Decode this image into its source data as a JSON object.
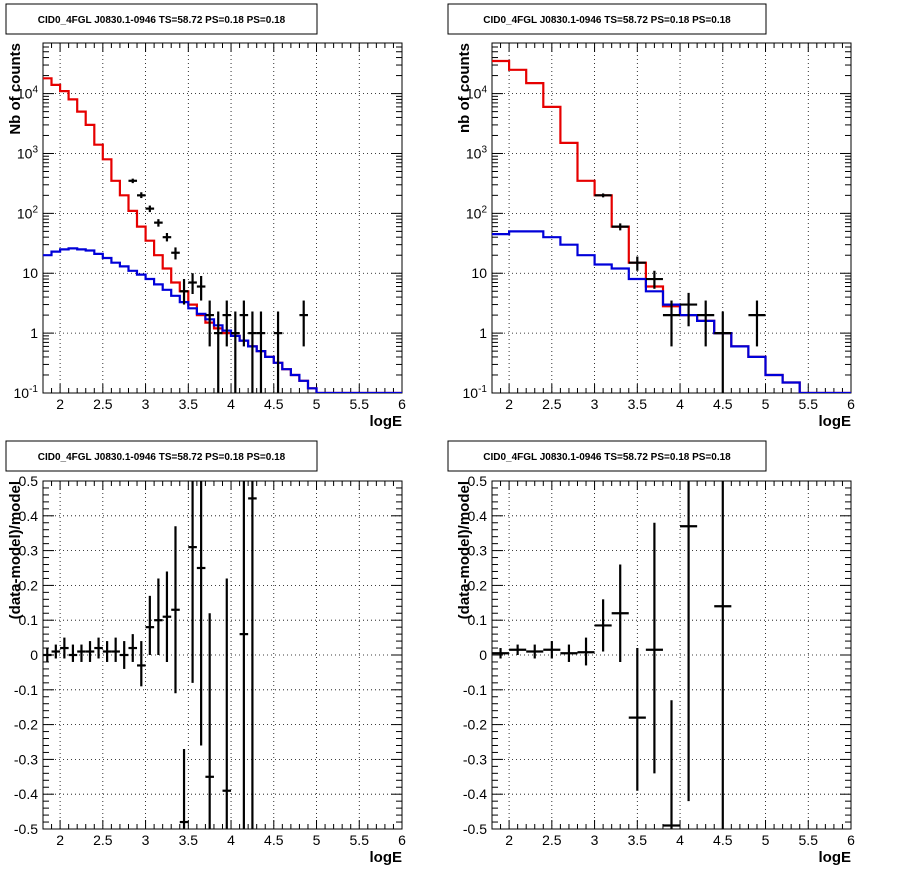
{
  "chart_data": [
    {
      "type": "line",
      "title": "CID0_4FGL J0830.1-0946 TS=58.72 PS=0.18 PS=0.18",
      "xlabel": "logE",
      "ylabel": "Nb of counts",
      "xscale": "linear",
      "yscale": "log",
      "xlim": [
        1.8,
        6
      ],
      "ylim": [
        0.1,
        70000
      ],
      "grid": true,
      "xtick_labels": [
        "2",
        "2.5",
        "3",
        "3.5",
        "4",
        "4.5",
        "5",
        "5.5",
        "6"
      ],
      "ytick_labels": [
        "10^-1",
        "1",
        "10",
        "10^2",
        "10^3",
        "10^4"
      ],
      "series": [
        {
          "kind": "step",
          "color": "#e60000",
          "x_edges": [
            1.8,
            1.9,
            2.0,
            2.1,
            2.2,
            2.3,
            2.4,
            2.5,
            2.6,
            2.7,
            2.8,
            2.9,
            3.0,
            3.1,
            3.2,
            3.3,
            3.4,
            3.5,
            3.6,
            3.7,
            3.8,
            3.9,
            4.0,
            4.1,
            4.2,
            4.3,
            4.4,
            4.5,
            4.6,
            4.7,
            4.8,
            4.9,
            5.0,
            5.1,
            5.2,
            5.3,
            5.4,
            5.5,
            5.6,
            5.7,
            5.8,
            5.9,
            6.0
          ],
          "values": [
            18000,
            14000,
            11000,
            8000,
            5000,
            3000,
            1400,
            800,
            350,
            200,
            110,
            60,
            35,
            20,
            12,
            7,
            5,
            3,
            2,
            1.5,
            1.2,
            1.0,
            0.9,
            0.75,
            0.6,
            0.5,
            0.4,
            0.32,
            0.25,
            0.2,
            0.16,
            0.12,
            0.1,
            0.1,
            0.1,
            0.1,
            0.1,
            0.1,
            0.1,
            0.1,
            0.1,
            0.1
          ]
        },
        {
          "kind": "step",
          "color": "#0000d9",
          "x_edges": [
            1.8,
            1.9,
            2.0,
            2.1,
            2.2,
            2.3,
            2.4,
            2.5,
            2.6,
            2.7,
            2.8,
            2.9,
            3.0,
            3.1,
            3.2,
            3.3,
            3.4,
            3.5,
            3.6,
            3.7,
            3.8,
            3.9,
            4.0,
            4.1,
            4.2,
            4.3,
            4.4,
            4.5,
            4.6,
            4.7,
            4.8,
            4.9,
            5.0,
            5.1,
            5.2,
            5.3,
            5.4,
            5.5,
            5.6,
            5.7,
            5.8,
            5.9,
            6.0
          ],
          "values": [
            20,
            23,
            25,
            26,
            25,
            24,
            21,
            18,
            15,
            13,
            11,
            9.5,
            8,
            6.5,
            5.3,
            4.2,
            3.3,
            2.6,
            2.1,
            1.7,
            1.35,
            1.1,
            0.9,
            0.75,
            0.6,
            0.5,
            0.4,
            0.32,
            0.25,
            0.2,
            0.16,
            0.12,
            0.1,
            0.1,
            0.1,
            0.1,
            0.1,
            0.1,
            0.1,
            0.1,
            0.1,
            0.1
          ]
        },
        {
          "kind": "errorbar",
          "color": "#000000",
          "points": [
            {
              "x": 2.85,
              "y": 350,
              "xerr": 0.05,
              "ylo": 320,
              "yhi": 380
            },
            {
              "x": 2.95,
              "y": 200,
              "xerr": 0.05,
              "ylo": 180,
              "yhi": 225
            },
            {
              "x": 3.05,
              "y": 120,
              "xerr": 0.05,
              "ylo": 105,
              "yhi": 135
            },
            {
              "x": 3.15,
              "y": 70,
              "xerr": 0.05,
              "ylo": 60,
              "yhi": 80
            },
            {
              "x": 3.25,
              "y": 40,
              "xerr": 0.05,
              "ylo": 34,
              "yhi": 47
            },
            {
              "x": 3.35,
              "y": 22,
              "xerr": 0.05,
              "ylo": 17,
              "yhi": 27
            },
            {
              "x": 3.45,
              "y": 5,
              "xerr": 0.05,
              "ylo": 3,
              "yhi": 8
            },
            {
              "x": 3.55,
              "y": 7,
              "xerr": 0.05,
              "ylo": 4.5,
              "yhi": 10
            },
            {
              "x": 3.65,
              "y": 6,
              "xerr": 0.05,
              "ylo": 3.5,
              "yhi": 9
            },
            {
              "x": 3.75,
              "y": 2,
              "xerr": 0.05,
              "ylo": 0.6,
              "yhi": 3.5
            },
            {
              "x": 3.85,
              "y": 1,
              "xerr": 0.05,
              "ylo": 0.1,
              "yhi": 2.3
            },
            {
              "x": 3.95,
              "y": 2,
              "xerr": 0.05,
              "ylo": 0.6,
              "yhi": 3.5
            },
            {
              "x": 4.05,
              "y": 1,
              "xerr": 0.05,
              "ylo": 0.1,
              "yhi": 2.3
            },
            {
              "x": 4.15,
              "y": 2,
              "xerr": 0.05,
              "ylo": 0.6,
              "yhi": 3.5
            },
            {
              "x": 4.25,
              "y": 1,
              "xerr": 0.05,
              "ylo": 0.1,
              "yhi": 2.3
            },
            {
              "x": 4.35,
              "y": 1,
              "xerr": 0.05,
              "ylo": 0.1,
              "yhi": 2.3
            },
            {
              "x": 4.55,
              "y": 1,
              "xerr": 0.05,
              "ylo": 0.1,
              "yhi": 2.3
            },
            {
              "x": 4.85,
              "y": 2,
              "xerr": 0.05,
              "ylo": 0.6,
              "yhi": 3.5
            }
          ]
        }
      ]
    },
    {
      "type": "line",
      "title": "CID0_4FGL J0830.1-0946 TS=58.72 PS=0.18 PS=0.18",
      "xlabel": "logE",
      "ylabel": "nb of counts",
      "xscale": "linear",
      "yscale": "log",
      "xlim": [
        1.8,
        6
      ],
      "ylim": [
        0.1,
        70000
      ],
      "grid": true,
      "xtick_labels": [
        "2",
        "2.5",
        "3",
        "3.5",
        "4",
        "4.5",
        "5",
        "5.5",
        "6"
      ],
      "ytick_labels": [
        "10^-1",
        "1",
        "10",
        "10^2",
        "10^3",
        "10^4"
      ],
      "series": [
        {
          "kind": "step",
          "color": "#e60000",
          "x_edges": [
            1.8,
            2.0,
            2.2,
            2.4,
            2.6,
            2.8,
            3.0,
            3.2,
            3.4,
            3.6,
            3.8,
            4.0,
            4.2,
            4.4,
            4.6,
            4.8,
            5.0,
            5.2,
            5.4,
            5.6,
            5.8,
            6.0
          ],
          "values": [
            35000,
            25000,
            15000,
            6000,
            1500,
            350,
            200,
            60,
            15,
            6,
            2.8,
            2,
            1.6,
            1,
            0.6,
            0.4,
            0.2,
            0.15,
            0.1,
            0.1,
            0.1
          ]
        },
        {
          "kind": "step",
          "color": "#0000d9",
          "x_edges": [
            1.8,
            2.0,
            2.2,
            2.4,
            2.6,
            2.8,
            3.0,
            3.2,
            3.4,
            3.6,
            3.8,
            4.0,
            4.2,
            4.4,
            4.6,
            4.8,
            5.0,
            5.2,
            5.4,
            5.6,
            5.8,
            6.0
          ],
          "values": [
            45,
            50,
            50,
            40,
            30,
            20,
            14,
            12,
            8,
            5,
            3,
            2,
            1.6,
            1,
            0.6,
            0.4,
            0.2,
            0.15,
            0.1,
            0.1,
            0.1
          ]
        },
        {
          "kind": "errorbar",
          "color": "#000000",
          "points": [
            {
              "x": 3.1,
              "y": 200,
              "xerr": 0.1,
              "ylo": 185,
              "yhi": 215
            },
            {
              "x": 3.3,
              "y": 60,
              "xerr": 0.1,
              "ylo": 52,
              "yhi": 68
            },
            {
              "x": 3.5,
              "y": 15,
              "xerr": 0.1,
              "ylo": 11,
              "yhi": 19
            },
            {
              "x": 3.7,
              "y": 8,
              "xerr": 0.1,
              "ylo": 5.5,
              "yhi": 11
            },
            {
              "x": 3.9,
              "y": 2,
              "xerr": 0.1,
              "ylo": 0.6,
              "yhi": 3.5
            },
            {
              "x": 4.1,
              "y": 3,
              "xerr": 0.1,
              "ylo": 1.3,
              "yhi": 4.7
            },
            {
              "x": 4.3,
              "y": 2,
              "xerr": 0.1,
              "ylo": 0.6,
              "yhi": 3.5
            },
            {
              "x": 4.5,
              "y": 1,
              "xerr": 0.1,
              "ylo": 0.1,
              "yhi": 2.3
            },
            {
              "x": 4.9,
              "y": 2,
              "xerr": 0.1,
              "ylo": 0.6,
              "yhi": 3.5
            }
          ]
        }
      ]
    },
    {
      "type": "scatter",
      "title": "CID0_4FGL J0830.1-0946 TS=58.72 PS=0.18 PS=0.18",
      "xlabel": "logE",
      "ylabel": "(data-model)/model",
      "xscale": "linear",
      "yscale": "linear",
      "xlim": [
        1.8,
        6
      ],
      "ylim": [
        -0.5,
        0.5
      ],
      "grid": true,
      "xtick_labels": [
        "2",
        "2.5",
        "3",
        "3.5",
        "4",
        "4.5",
        "5",
        "5.5",
        "6"
      ],
      "ytick_labels": [
        "-0.5",
        "-0.4",
        "-0.3",
        "-0.2",
        "-0.1",
        "0",
        "0.1",
        "0.2",
        "0.3",
        "0.4",
        "0.5"
      ],
      "series": [
        {
          "kind": "errorbar",
          "color": "#000000",
          "points": [
            {
              "x": 1.85,
              "y": 0.0,
              "xerr": 0.05,
              "ylo": -0.02,
              "yhi": 0.02
            },
            {
              "x": 1.95,
              "y": 0.01,
              "xerr": 0.05,
              "ylo": -0.01,
              "yhi": 0.03
            },
            {
              "x": 2.05,
              "y": 0.02,
              "xerr": 0.05,
              "ylo": -0.01,
              "yhi": 0.05
            },
            {
              "x": 2.15,
              "y": 0.0,
              "xerr": 0.05,
              "ylo": -0.02,
              "yhi": 0.03
            },
            {
              "x": 2.25,
              "y": 0.01,
              "xerr": 0.05,
              "ylo": -0.02,
              "yhi": 0.03
            },
            {
              "x": 2.35,
              "y": 0.01,
              "xerr": 0.05,
              "ylo": -0.02,
              "yhi": 0.04
            },
            {
              "x": 2.45,
              "y": 0.02,
              "xerr": 0.05,
              "ylo": -0.01,
              "yhi": 0.05
            },
            {
              "x": 2.55,
              "y": 0.01,
              "xerr": 0.05,
              "ylo": -0.02,
              "yhi": 0.04
            },
            {
              "x": 2.65,
              "y": 0.01,
              "xerr": 0.05,
              "ylo": -0.02,
              "yhi": 0.05
            },
            {
              "x": 2.75,
              "y": 0.0,
              "xerr": 0.05,
              "ylo": -0.04,
              "yhi": 0.04
            },
            {
              "x": 2.85,
              "y": 0.02,
              "xerr": 0.05,
              "ylo": -0.02,
              "yhi": 0.06
            },
            {
              "x": 2.95,
              "y": -0.03,
              "xerr": 0.05,
              "ylo": -0.09,
              "yhi": 0.04
            },
            {
              "x": 3.05,
              "y": 0.08,
              "xerr": 0.05,
              "ylo": 0.0,
              "yhi": 0.17
            },
            {
              "x": 3.15,
              "y": 0.1,
              "xerr": 0.05,
              "ylo": 0.0,
              "yhi": 0.22
            },
            {
              "x": 3.25,
              "y": 0.11,
              "xerr": 0.05,
              "ylo": -0.02,
              "yhi": 0.24
            },
            {
              "x": 3.35,
              "y": 0.13,
              "xerr": 0.05,
              "ylo": -0.11,
              "yhi": 0.37
            },
            {
              "x": 3.45,
              "y": -0.48,
              "xerr": 0.05,
              "ylo": -0.5,
              "yhi": -0.27
            },
            {
              "x": 3.55,
              "y": 0.31,
              "xerr": 0.05,
              "ylo": -0.08,
              "yhi": 0.5
            },
            {
              "x": 3.65,
              "y": 0.25,
              "xerr": 0.05,
              "ylo": -0.26,
              "yhi": 0.5
            },
            {
              "x": 3.75,
              "y": -0.35,
              "xerr": 0.05,
              "ylo": -0.5,
              "yhi": 0.12
            },
            {
              "x": 3.95,
              "y": -0.39,
              "xerr": 0.05,
              "ylo": -0.5,
              "yhi": 0.22
            },
            {
              "x": 4.15,
              "y": 0.06,
              "xerr": 0.05,
              "ylo": -0.5,
              "yhi": 0.5
            },
            {
              "x": 4.25,
              "y": 0.45,
              "xerr": 0.05,
              "ylo": -0.5,
              "yhi": 0.5
            }
          ]
        }
      ]
    },
    {
      "type": "scatter",
      "title": "CID0_4FGL J0830.1-0946 TS=58.72 PS=0.18 PS=0.18",
      "xlabel": "logE",
      "ylabel": "(data-model)/model",
      "xscale": "linear",
      "yscale": "linear",
      "xlim": [
        1.8,
        6
      ],
      "ylim": [
        -0.5,
        0.5
      ],
      "grid": true,
      "xtick_labels": [
        "2",
        "2.5",
        "3",
        "3.5",
        "4",
        "4.5",
        "5",
        "5.5",
        "6"
      ],
      "ytick_labels": [
        "-0.5",
        "-0.4",
        "-0.3",
        "-0.2",
        "-0.1",
        "0",
        "0.1",
        "0.2",
        "0.3",
        "0.4",
        "0.5"
      ],
      "series": [
        {
          "kind": "errorbar",
          "color": "#000000",
          "points": [
            {
              "x": 1.9,
              "y": 0.005,
              "xerr": 0.1,
              "ylo": -0.01,
              "yhi": 0.02
            },
            {
              "x": 2.1,
              "y": 0.015,
              "xerr": 0.1,
              "ylo": 0.0,
              "yhi": 0.03
            },
            {
              "x": 2.3,
              "y": 0.01,
              "xerr": 0.1,
              "ylo": -0.01,
              "yhi": 0.03
            },
            {
              "x": 2.5,
              "y": 0.015,
              "xerr": 0.1,
              "ylo": -0.01,
              "yhi": 0.04
            },
            {
              "x": 2.7,
              "y": 0.005,
              "xerr": 0.1,
              "ylo": -0.02,
              "yhi": 0.03
            },
            {
              "x": 2.9,
              "y": 0.008,
              "xerr": 0.1,
              "ylo": -0.03,
              "yhi": 0.05
            },
            {
              "x": 3.1,
              "y": 0.085,
              "xerr": 0.1,
              "ylo": 0.01,
              "yhi": 0.16
            },
            {
              "x": 3.3,
              "y": 0.12,
              "xerr": 0.1,
              "ylo": -0.02,
              "yhi": 0.26
            },
            {
              "x": 3.5,
              "y": -0.18,
              "xerr": 0.1,
              "ylo": -0.39,
              "yhi": 0.02
            },
            {
              "x": 3.7,
              "y": 0.015,
              "xerr": 0.1,
              "ylo": -0.34,
              "yhi": 0.38
            },
            {
              "x": 3.9,
              "y": -0.49,
              "xerr": 0.1,
              "ylo": -0.5,
              "yhi": -0.13
            },
            {
              "x": 4.1,
              "y": 0.37,
              "xerr": 0.1,
              "ylo": -0.42,
              "yhi": 0.5
            },
            {
              "x": 4.5,
              "y": 0.14,
              "xerr": 0.1,
              "ylo": -0.5,
              "yhi": 0.5
            }
          ]
        }
      ]
    }
  ]
}
